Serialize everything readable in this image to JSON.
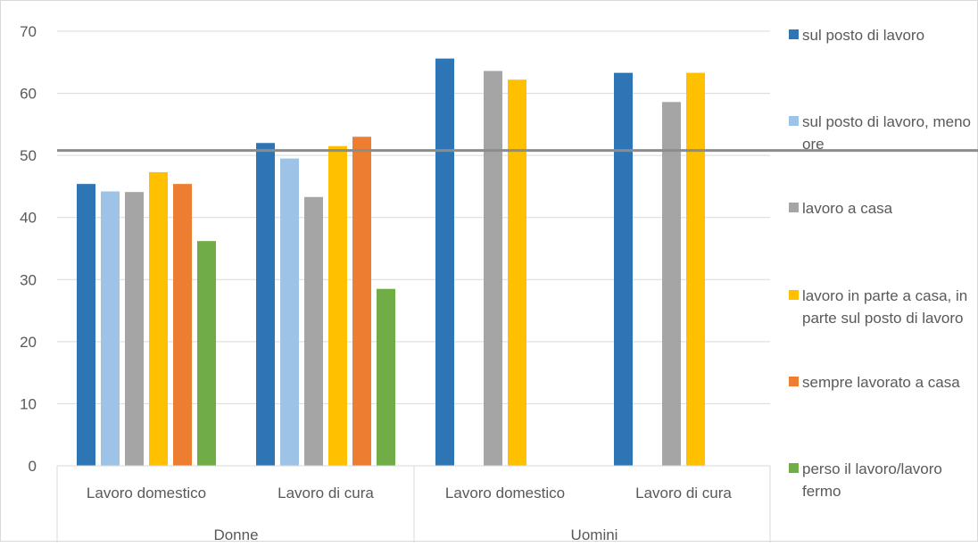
{
  "chart_data": {
    "type": "bar",
    "ylim": [
      0,
      70
    ],
    "yticks": [
      0,
      10,
      20,
      30,
      40,
      50,
      60,
      70
    ],
    "grid": true,
    "legend_position": "right",
    "groups": [
      {
        "label": "Donne",
        "categories": [
          "Lavoro domestico",
          "Lavoro di cura"
        ]
      },
      {
        "label": "Uomini",
        "categories": [
          "Lavoro domestico",
          "Lavoro di cura"
        ]
      }
    ],
    "reference_line": {
      "value": 50.8
    },
    "series": [
      {
        "name": "sul posto di lavoro",
        "color": "#2E75B6",
        "values": [
          45.4,
          52.0,
          65.6,
          63.3
        ]
      },
      {
        "name": "sul posto di lavoro, meno ore",
        "color": "#9DC3E6",
        "values": [
          44.2,
          49.5,
          null,
          null
        ]
      },
      {
        "name": "lavoro a casa",
        "color": "#A5A5A5",
        "values": [
          44.1,
          43.3,
          63.6,
          58.6
        ]
      },
      {
        "name": "lavoro in parte a casa, in parte sul posto di lavoro",
        "color": "#FFC000",
        "values": [
          47.3,
          51.5,
          62.2,
          63.3
        ]
      },
      {
        "name": "sempre lavorato a casa",
        "color": "#ED7D31",
        "values": [
          45.4,
          53.0,
          null,
          null
        ]
      },
      {
        "name": "perso il lavoro/lavoro fermo",
        "color": "#70AD47",
        "values": [
          36.2,
          28.5,
          null,
          null
        ]
      }
    ]
  }
}
